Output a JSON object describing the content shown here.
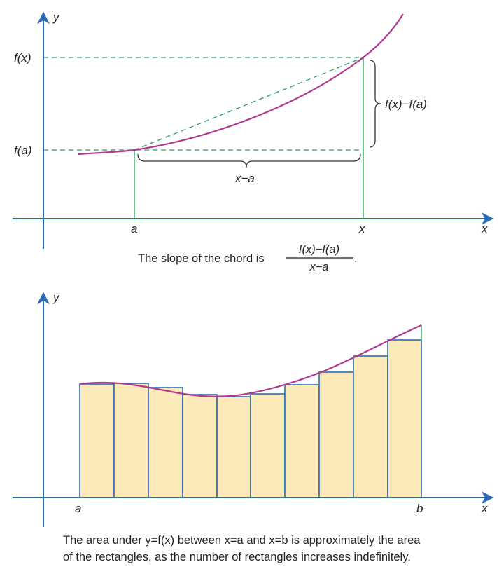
{
  "colors": {
    "axis": "#2a6db5",
    "curve": "#b0398e",
    "guide_dash": "#2e9e6a",
    "guide_solid": "#3cb76a",
    "rect_fill": "#fdeabb",
    "rect_stroke": "#2a6db5",
    "brace": "#333333"
  },
  "top_diagram": {
    "y_axis_label": "y",
    "x_axis_label": "x",
    "label_fx": "f(x)",
    "label_fa": "f(a)",
    "tick_a": "a",
    "tick_x": "x",
    "brace_vertical_label": "f(x)−f(a)",
    "brace_horizontal_label": "x−a",
    "caption_text": "The slope of the chord is",
    "caption_numerator": "f(x)−f(a)",
    "caption_denominator": "x−a",
    "caption_end": "."
  },
  "bottom_diagram": {
    "y_axis_label": "y",
    "x_axis_label": "x",
    "tick_a": "a",
    "tick_b": "b",
    "rectangle_count": 10,
    "caption_line1": "The area under y=f(x) between x=a and x=b is approximately the area",
    "caption_line2": "of the rectangles, as the number of rectangles increases indefinitely."
  }
}
